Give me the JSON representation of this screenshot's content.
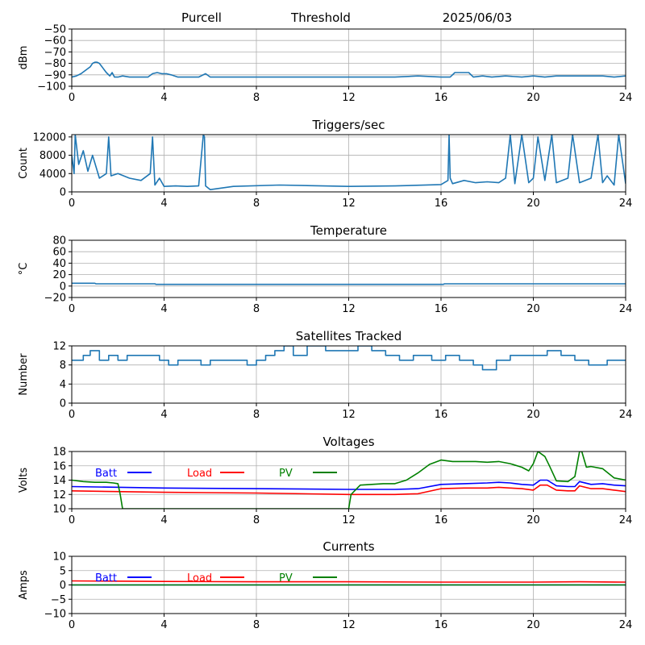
{
  "header": {
    "station": "Purcell",
    "mode": "Threshold",
    "date": "2025/06/03"
  },
  "chart_data": [
    {
      "id": "signal",
      "type": "line",
      "title": "",
      "xlabel": "",
      "ylabel": "dBm",
      "xlim": [
        0,
        24
      ],
      "ylim": [
        -100,
        -50
      ],
      "xticks": [
        "0",
        "4",
        "8",
        "12",
        "16",
        "20",
        "24"
      ],
      "yticks": [
        "−100",
        "−90",
        "−80",
        "−70",
        "−60",
        "−50"
      ],
      "grid": true,
      "series": [
        {
          "color": "#1f77b4",
          "x": [
            0,
            0.2,
            0.4,
            0.6,
            0.8,
            0.9,
            1.0,
            1.1,
            1.2,
            1.35,
            1.5,
            1.65,
            1.75,
            1.85,
            2.0,
            2.2,
            2.5,
            3.0,
            3.3,
            3.5,
            3.7,
            3.9,
            4.1,
            4.3,
            4.6,
            5.0,
            5.5,
            5.8,
            6.0,
            7.0,
            10.0,
            14.0,
            15.0,
            16.0,
            16.4,
            16.6,
            16.8,
            17.0,
            17.2,
            17.4,
            17.8,
            18.2,
            18.8,
            19.5,
            20.0,
            20.5,
            21.0,
            22.0,
            23.0,
            23.5,
            24.0
          ],
          "y": [
            -92,
            -91,
            -89,
            -86,
            -83,
            -80,
            -79,
            -79,
            -80,
            -84,
            -88,
            -91,
            -88,
            -92,
            -92,
            -91,
            -92,
            -92,
            -92,
            -89,
            -88,
            -89,
            -89,
            -90,
            -92,
            -92,
            -92,
            -89,
            -92,
            -92,
            -92,
            -92,
            -91,
            -92,
            -92,
            -88,
            -88,
            -88,
            -88,
            -92,
            -91,
            -92,
            -91,
            -92,
            -91,
            -92,
            -91,
            -91,
            -91,
            -92,
            -91
          ]
        }
      ]
    },
    {
      "id": "triggers",
      "type": "line",
      "title": "Triggers/sec",
      "xlabel": "",
      "ylabel": "Count",
      "xlim": [
        0,
        24
      ],
      "ylim": [
        0,
        12500
      ],
      "xticks": [
        "0",
        "4",
        "8",
        "12",
        "16",
        "20",
        "24"
      ],
      "yticks": [
        "0",
        "4000",
        "8000",
        "12000"
      ],
      "grid": true,
      "series": [
        {
          "color": "#1f77b4",
          "x": [
            0,
            0.1,
            0.15,
            0.3,
            0.5,
            0.7,
            0.9,
            1.2,
            1.5,
            1.6,
            1.7,
            2.0,
            2.5,
            3.0,
            3.4,
            3.5,
            3.6,
            3.8,
            4.0,
            4.5,
            5.0,
            5.5,
            5.7,
            5.75,
            5.8,
            6.0,
            7.0,
            9.0,
            12.0,
            14.0,
            16.0,
            16.3,
            16.35,
            16.4,
            16.5,
            17.0,
            17.5,
            18.0,
            18.5,
            18.8,
            19.0,
            19.2,
            19.5,
            19.8,
            20.0,
            20.2,
            20.5,
            20.8,
            21.0,
            21.5,
            21.7,
            22.0,
            22.5,
            22.8,
            23.0,
            23.2,
            23.5,
            23.7,
            24.0
          ],
          "y": [
            8000,
            4000,
            12500,
            6000,
            9000,
            4500,
            8000,
            3000,
            4000,
            12000,
            3500,
            4000,
            3000,
            2500,
            4000,
            12000,
            1500,
            3000,
            1200,
            1300,
            1200,
            1300,
            12500,
            12000,
            1300,
            500,
            1200,
            1500,
            1200,
            1300,
            1600,
            2500,
            12500,
            3000,
            1800,
            2500,
            2000,
            2200,
            2000,
            3000,
            12500,
            1800,
            12500,
            2000,
            3000,
            12000,
            2500,
            12500,
            2000,
            3000,
            12500,
            2000,
            3000,
            12500,
            2000,
            3500,
            1500,
            12500,
            1800
          ]
        }
      ]
    },
    {
      "id": "temperature",
      "type": "line",
      "title": "Temperature",
      "xlabel": "",
      "ylabel": "°C",
      "xlim": [
        0,
        24
      ],
      "ylim": [
        -20,
        80
      ],
      "xticks": [
        "0",
        "4",
        "8",
        "12",
        "16",
        "20",
        "24"
      ],
      "yticks": [
        "−20",
        "0",
        "20",
        "40",
        "60",
        "80"
      ],
      "grid": true,
      "series": [
        {
          "color": "#1f77b4",
          "x": [
            0,
            1,
            1.05,
            3.6,
            3.65,
            12,
            16.1,
            16.15,
            24
          ],
          "y": [
            5,
            5,
            4,
            4,
            3,
            3,
            3,
            4,
            4
          ]
        }
      ]
    },
    {
      "id": "satellites",
      "type": "line",
      "title": "Satellites Tracked",
      "xlabel": "",
      "ylabel": "Number",
      "xlim": [
        0,
        24
      ],
      "ylim": [
        0,
        12
      ],
      "xticks": [
        "0",
        "4",
        "8",
        "12",
        "16",
        "20",
        "24"
      ],
      "yticks": [
        "0",
        "4",
        "8",
        "12"
      ],
      "grid": true,
      "series": [
        {
          "color": "#1f77b4",
          "step": true,
          "x": [
            0,
            0.5,
            0.8,
            1.2,
            1.6,
            2.0,
            2.4,
            3.0,
            3.8,
            4.2,
            4.6,
            5.0,
            5.6,
            6.0,
            7.0,
            7.6,
            8.0,
            8.4,
            8.8,
            9.2,
            9.6,
            10.2,
            11.0,
            11.8,
            12.4,
            13.0,
            13.6,
            14.2,
            14.8,
            15.6,
            16.2,
            16.8,
            17.4,
            17.8,
            18.4,
            19.0,
            20.0,
            20.6,
            21.2,
            21.8,
            22.4,
            23.2,
            24.0
          ],
          "y": [
            9,
            10,
            11,
            9,
            10,
            9,
            10,
            10,
            9,
            8,
            9,
            9,
            8,
            9,
            9,
            8,
            9,
            10,
            11,
            12,
            10,
            12,
            11,
            11,
            12,
            11,
            10,
            9,
            10,
            9,
            10,
            9,
            8,
            7,
            9,
            10,
            10,
            11,
            10,
            9,
            8,
            9,
            9
          ]
        }
      ]
    },
    {
      "id": "voltages",
      "type": "line",
      "title": "Voltages",
      "xlabel": "",
      "ylabel": "Volts",
      "xlim": [
        0,
        24
      ],
      "ylim": [
        10,
        18
      ],
      "xticks": [
        "0",
        "4",
        "8",
        "12",
        "16",
        "20",
        "24"
      ],
      "yticks": [
        "10",
        "12",
        "14",
        "16",
        "18"
      ],
      "grid": true,
      "legend": "top-left",
      "series": [
        {
          "name": "Batt",
          "color": "#0000ff",
          "x": [
            0,
            4,
            8,
            12,
            14,
            15,
            16,
            17,
            18,
            18.5,
            19,
            19.5,
            20,
            20.3,
            20.6,
            21,
            21.5,
            21.8,
            22,
            22.5,
            23,
            23.5,
            24
          ],
          "y": [
            13.1,
            12.9,
            12.8,
            12.7,
            12.7,
            12.8,
            13.4,
            13.5,
            13.6,
            13.7,
            13.6,
            13.4,
            13.3,
            14.0,
            14.0,
            13.2,
            13.1,
            13.1,
            13.8,
            13.4,
            13.5,
            13.3,
            13.2
          ]
        },
        {
          "name": "Load",
          "color": "#ff0000",
          "x": [
            0,
            4,
            8,
            12,
            14,
            15,
            16,
            17,
            18,
            18.5,
            19,
            19.5,
            20,
            20.3,
            20.6,
            21,
            21.5,
            21.8,
            22,
            22.5,
            23,
            23.5,
            24
          ],
          "y": [
            12.5,
            12.3,
            12.2,
            12.0,
            12.0,
            12.1,
            12.8,
            12.9,
            12.9,
            13.0,
            12.9,
            12.8,
            12.6,
            13.3,
            13.3,
            12.6,
            12.5,
            12.5,
            13.2,
            12.8,
            12.8,
            12.6,
            12.4
          ]
        },
        {
          "name": "PV",
          "color": "#008000",
          "x": [
            0,
            0.5,
            1,
            1.5,
            1.8,
            2.0,
            2.1,
            2.2,
            12.0,
            12.1,
            12.5,
            13.0,
            13.5,
            14.0,
            14.5,
            15.0,
            15.5,
            16.0,
            16.5,
            17.0,
            17.5,
            18.0,
            18.5,
            19.0,
            19.5,
            19.8,
            20.0,
            20.2,
            20.5,
            20.7,
            21.0,
            21.5,
            21.8,
            22.0,
            22.1,
            22.3,
            22.5,
            23.0,
            23.5,
            24.0
          ],
          "y": [
            14.0,
            13.8,
            13.7,
            13.7,
            13.6,
            13.5,
            12.0,
            10.0,
            10.0,
            12.0,
            13.3,
            13.4,
            13.5,
            13.5,
            14.0,
            15.0,
            16.2,
            16.8,
            16.6,
            16.6,
            16.6,
            16.5,
            16.6,
            16.3,
            15.8,
            15.3,
            16.3,
            18.0,
            17.3,
            16.0,
            13.9,
            13.8,
            14.5,
            18.0,
            18.0,
            15.8,
            15.9,
            15.6,
            14.3,
            14.0
          ]
        }
      ]
    },
    {
      "id": "currents",
      "type": "line",
      "title": "Currents",
      "xlabel": "",
      "ylabel": "Amps",
      "xlim": [
        0,
        24
      ],
      "ylim": [
        -10,
        10
      ],
      "xticks": [
        "0",
        "4",
        "8",
        "12",
        "16",
        "20",
        "24"
      ],
      "yticks": [
        "−10",
        "−5",
        "0",
        "5",
        "10"
      ],
      "grid": true,
      "legend": "top-left",
      "series": [
        {
          "name": "Batt",
          "color": "#0000ff",
          "x": [
            0,
            24
          ],
          "y": [
            0,
            0
          ]
        },
        {
          "name": "Load",
          "color": "#ff0000",
          "x": [
            0,
            4,
            8,
            12,
            16,
            20,
            22,
            24
          ],
          "y": [
            1.4,
            1.2,
            1.1,
            1.1,
            1.0,
            1.0,
            1.1,
            1.0
          ]
        },
        {
          "name": "PV",
          "color": "#008000",
          "x": [
            0,
            24
          ],
          "y": [
            0,
            0
          ]
        }
      ]
    }
  ]
}
